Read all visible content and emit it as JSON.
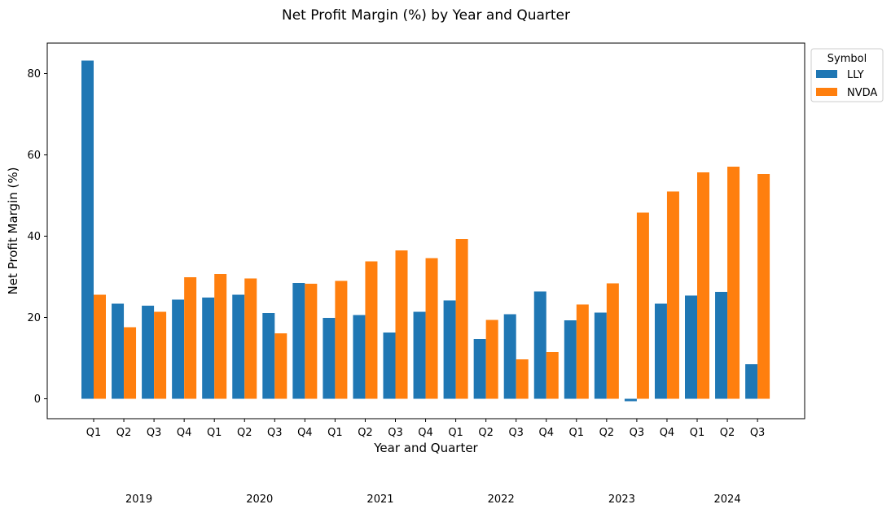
{
  "chart_data": {
    "type": "bar",
    "title": "Net Profit Margin (%) by Year and Quarter",
    "xlabel": "Year and Quarter",
    "ylabel": "Net Profit Margin (%)",
    "ylim": [
      -5,
      87.5
    ],
    "yticks": [
      0,
      20,
      40,
      60,
      80
    ],
    "grid": false,
    "legend": {
      "title": "Symbol",
      "placement": "outside-top-right"
    },
    "categories": [
      "Q1",
      "Q2",
      "Q3",
      "Q4",
      "Q1",
      "Q2",
      "Q3",
      "Q4",
      "Q1",
      "Q2",
      "Q3",
      "Q4",
      "Q1",
      "Q2",
      "Q3",
      "Q4",
      "Q1",
      "Q2",
      "Q3",
      "Q4",
      "Q1",
      "Q2",
      "Q3"
    ],
    "years": [
      {
        "label": "2019",
        "start": 0,
        "end": 3
      },
      {
        "label": "2020",
        "start": 4,
        "end": 7
      },
      {
        "label": "2021",
        "start": 8,
        "end": 11
      },
      {
        "label": "2022",
        "start": 12,
        "end": 15
      },
      {
        "label": "2023",
        "start": 16,
        "end": 19
      },
      {
        "label": "2024",
        "start": 20,
        "end": 22
      }
    ],
    "series": [
      {
        "name": "LLY",
        "color": "#1f77b4",
        "values": [
          83.2,
          23.4,
          22.9,
          24.4,
          24.9,
          25.6,
          21.1,
          28.5,
          19.9,
          20.6,
          16.3,
          21.4,
          24.2,
          14.7,
          20.8,
          26.4,
          19.3,
          21.2,
          -0.6,
          23.4,
          25.4,
          26.3,
          8.5
        ]
      },
      {
        "name": "NVDA",
        "color": "#ff7f0e",
        "values": [
          25.6,
          17.6,
          21.4,
          29.9,
          30.7,
          29.6,
          16.1,
          28.3,
          29.0,
          33.8,
          36.5,
          34.6,
          39.3,
          19.4,
          9.7,
          11.5,
          23.2,
          28.4,
          45.8,
          51.0,
          55.7,
          57.1,
          55.3
        ]
      }
    ]
  }
}
